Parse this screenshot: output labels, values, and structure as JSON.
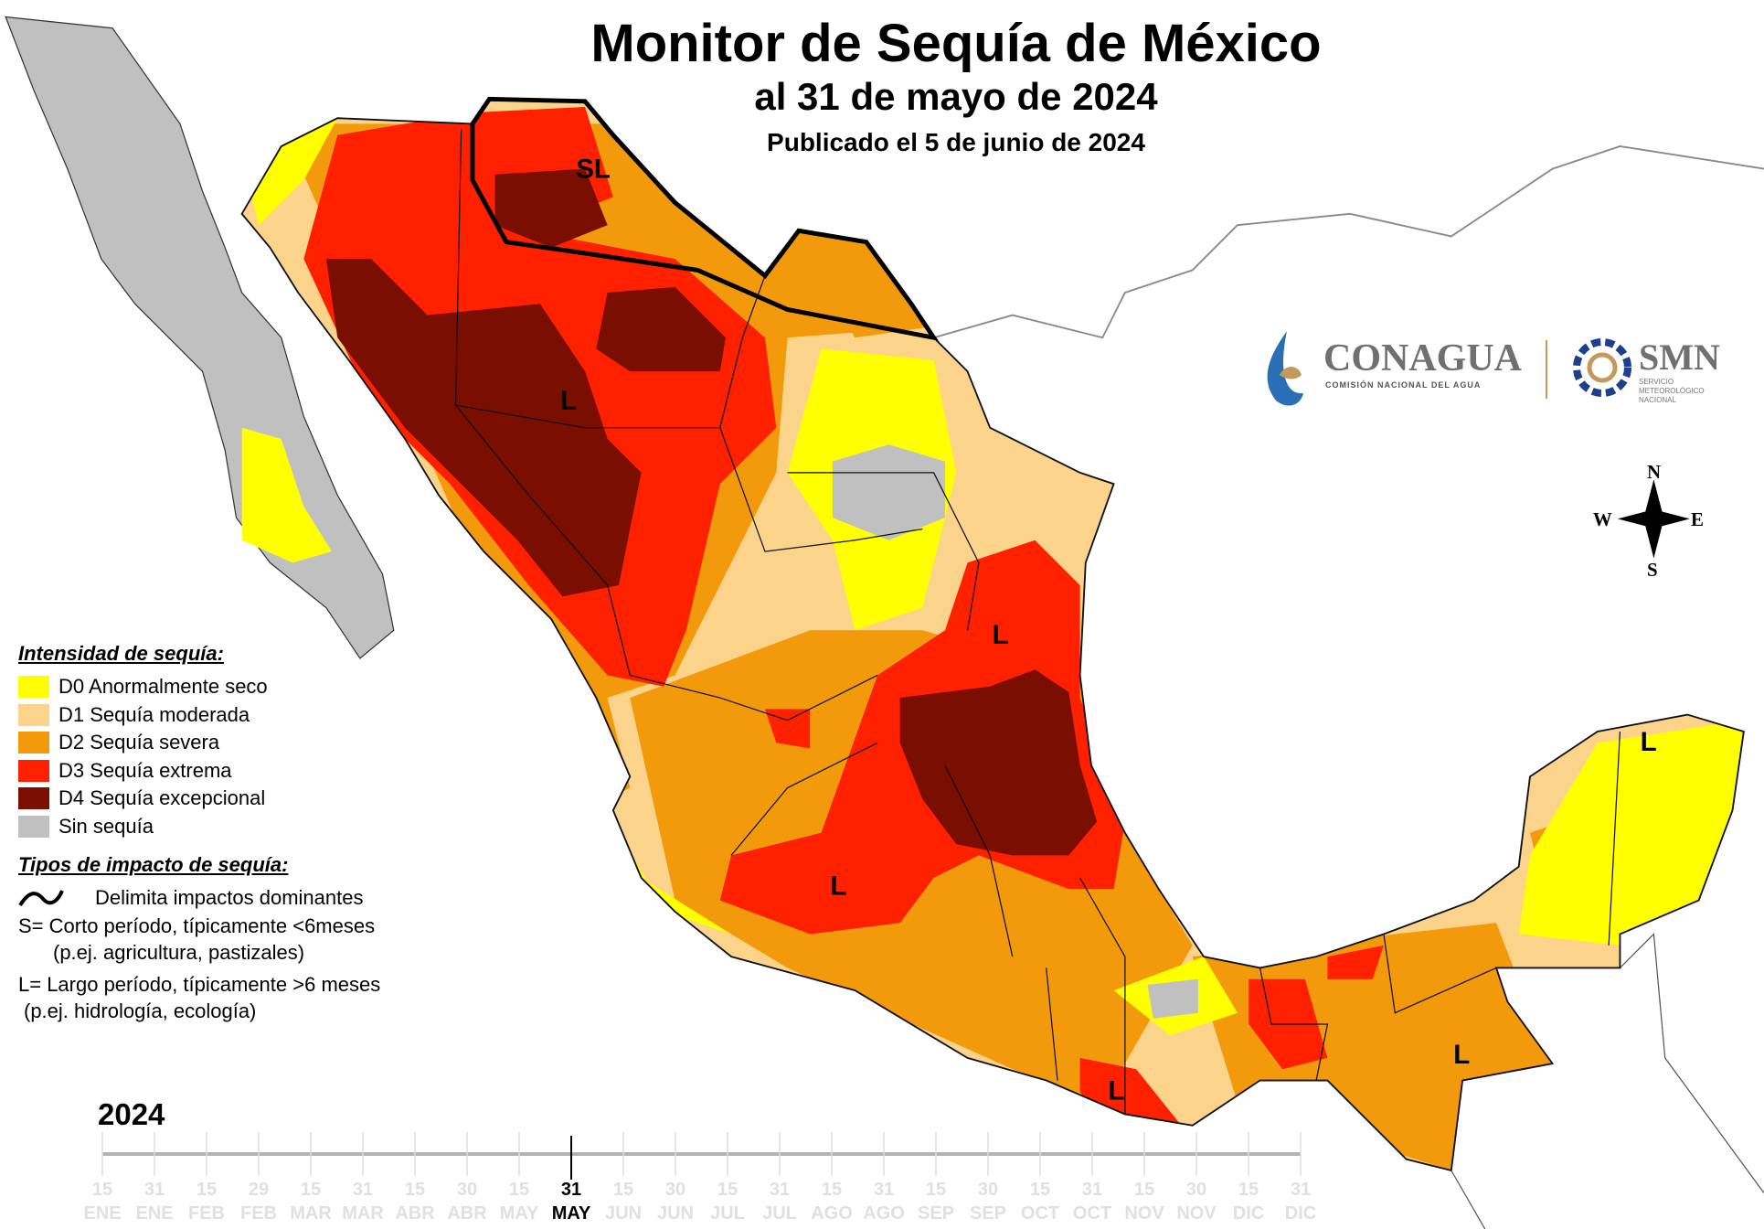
{
  "header": {
    "title": "Monitor de Sequía de México",
    "subtitle": "al 31 de mayo de 2024",
    "published": "Publicado el 5 de junio de 2024"
  },
  "legend": {
    "intensity_heading": "Intensidad de sequía:",
    "items": [
      {
        "label": "D0 Anormalmente seco",
        "color": "#ffff00"
      },
      {
        "label": "D1 Sequía moderada",
        "color": "#fcd38b"
      },
      {
        "label": "D2 Sequía severa",
        "color": "#f29a0b"
      },
      {
        "label": "D3 Sequía extrema",
        "color": "#ff2000"
      },
      {
        "label": "D4 Sequía excepcional",
        "color": "#7a0e00"
      },
      {
        "label": "Sin sequía",
        "color": "#c0c0c0"
      }
    ],
    "impact_heading": "Tipos de impacto de sequía:",
    "impact_line": "Delimita impactos dominantes",
    "short_term": "S= Corto período, típicamente <6meses",
    "short_term_ex": "(p.ej. agricultura, pastizales)",
    "long_term": "L= Largo período, típicamente >6 meses",
    "long_term_ex": "(p.ej. hidrología, ecología)"
  },
  "map_labels": [
    "SL",
    "L",
    "L",
    "L",
    "L",
    "L",
    "L"
  ],
  "logos": {
    "conagua": "CONAGUA",
    "conagua_sub": "COMISIÓN NACIONAL DEL AGUA",
    "smn": "SMN",
    "smn_sub1": "SERVICIO",
    "smn_sub2": "METEOROLÓGICO",
    "smn_sub3": "NACIONAL"
  },
  "compass": {
    "n": "N",
    "s": "S",
    "e": "E",
    "w": "W"
  },
  "timeline": {
    "year": "2024",
    "days": [
      "15",
      "31",
      "15",
      "29",
      "15",
      "31",
      "15",
      "30",
      "15",
      "31",
      "15",
      "30",
      "15",
      "31",
      "15",
      "31",
      "15",
      "30",
      "15",
      "31",
      "15",
      "30",
      "15",
      "31"
    ],
    "months": [
      "ENE",
      "ENE",
      "FEB",
      "FEB",
      "MAR",
      "MAR",
      "ABR",
      "ABR",
      "MAY",
      "MAY",
      "JUN",
      "JUN",
      "JUL",
      "JUL",
      "AGO",
      "AGO",
      "SEP",
      "SEP",
      "OCT",
      "OCT",
      "NOV",
      "NOV",
      "DIC",
      "DIC"
    ],
    "current_index": 9
  }
}
